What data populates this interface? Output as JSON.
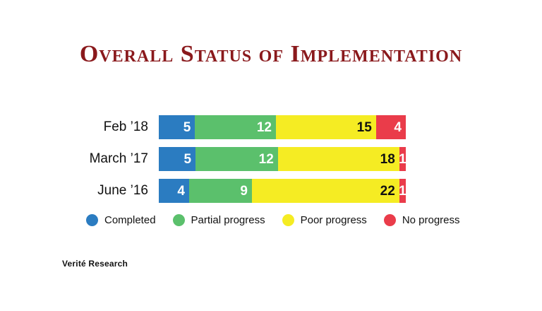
{
  "title": "Overall Status of Implementation",
  "title_color": "#8a191c",
  "footer": "Verité Research",
  "legend": [
    {
      "label": "Completed",
      "color": "#2b7cc1"
    },
    {
      "label": "Partial progress",
      "color": "#5bc06c"
    },
    {
      "label": "Poor progress",
      "color": "#f5ec23"
    },
    {
      "label": "No progress",
      "color": "#ea3c4a"
    }
  ],
  "chart_data": {
    "type": "bar",
    "orientation": "horizontal",
    "stacked": true,
    "title": "Overall Status of Implementation",
    "categories": [
      "Feb ’18",
      "March ’17",
      "June ’16"
    ],
    "series": [
      {
        "name": "Completed",
        "color": "#2b7cc1",
        "values": [
          5,
          5,
          4
        ]
      },
      {
        "name": "Partial progress",
        "color": "#5bc06c",
        "values": [
          12,
          12,
          9
        ]
      },
      {
        "name": "Poor progress",
        "color": "#f5ec23",
        "values": [
          15,
          18,
          22
        ]
      },
      {
        "name": "No progress",
        "color": "#ea3c4a",
        "values": [
          4,
          1,
          1
        ]
      }
    ],
    "row_totals": [
      36,
      36,
      36
    ],
    "xlim": [
      0,
      36
    ],
    "value_labels_shown": true,
    "grid": false,
    "legend_position": "bottom"
  }
}
